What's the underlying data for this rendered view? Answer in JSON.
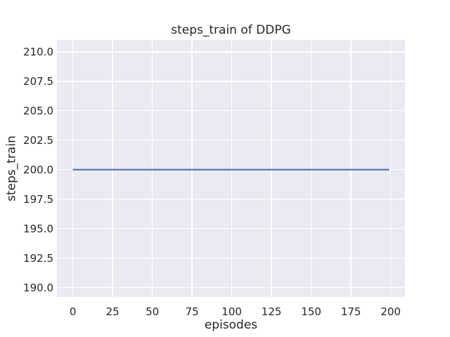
{
  "chart_data": {
    "type": "line",
    "title": "steps_train of DDPG",
    "xlabel": "episodes",
    "ylabel": "steps_train",
    "x_ticks": [
      0,
      25,
      50,
      75,
      100,
      125,
      150,
      175,
      200
    ],
    "x_tick_labels": [
      "0",
      "25",
      "50",
      "75",
      "100",
      "125",
      "150",
      "175",
      "200"
    ],
    "y_ticks": [
      190.0,
      192.5,
      195.0,
      197.5,
      200.0,
      202.5,
      205.0,
      207.5,
      210.0
    ],
    "y_tick_labels": [
      "190.0",
      "192.5",
      "195.0",
      "197.5",
      "200.0",
      "202.5",
      "205.0",
      "207.5",
      "210.0"
    ],
    "xlim": [
      -10,
      209
    ],
    "ylim": [
      189.2,
      211.0
    ],
    "grid": true,
    "legend": "none",
    "series": [
      {
        "name": "steps_train",
        "x": [
          0,
          199
        ],
        "y": [
          200,
          200
        ]
      }
    ],
    "colors": {
      "line": "#4c72b0",
      "plot_background": "#eaeaf2",
      "grid": "#ffffff",
      "figure_background": "#ffffff",
      "text": "#262626"
    }
  }
}
